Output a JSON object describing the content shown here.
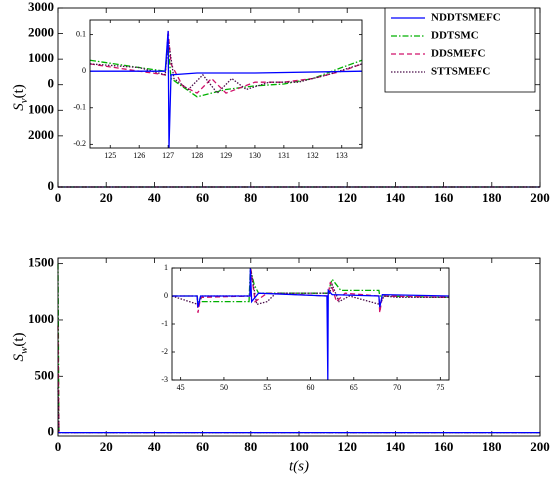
{
  "chart_data": [
    {
      "type": "line",
      "ylabel": {
        "base": "S",
        "sub": "v",
        "rest": "(t)"
      },
      "xlim": [
        0,
        200
      ],
      "xticks": [
        0,
        20,
        40,
        60,
        80,
        100,
        120,
        140,
        160,
        180,
        200
      ],
      "ylim": [
        -4000,
        3000
      ],
      "yticks": [
        3000,
        2000,
        1000,
        0,
        {
          "value": -1000,
          "label": "1000"
        },
        {
          "value": -2000,
          "label": "2000"
        },
        {
          "value": -4000,
          "label": "0"
        }
      ],
      "legend": "upper right",
      "series": [
        {
          "name": "NDDTSMEFC",
          "color": "#0000ff",
          "style": "solid",
          "x": [
            0,
            200
          ],
          "values": [
            -4000,
            -4000
          ]
        },
        {
          "name": "DDTSMC",
          "color": "#00b000",
          "style": "dashdot",
          "x": [
            0,
            200
          ],
          "values": [
            -4000,
            -4000
          ]
        },
        {
          "name": "DDSMEFC",
          "color": "#d0106a",
          "style": "dashed",
          "x": [
            0,
            200
          ],
          "values": [
            -4000,
            -4000
          ]
        },
        {
          "name": "STTSMEFC",
          "color": "#4a0f4a",
          "style": "dotted",
          "x": [
            0,
            200
          ],
          "values": [
            -4000,
            -4000
          ]
        }
      ]
    },
    {
      "type": "line",
      "xlim": [
        124.3,
        133.7
      ],
      "xticks": [
        125,
        126,
        127,
        128,
        129,
        130,
        131,
        132,
        133
      ],
      "ylim": [
        -0.21,
        0.14
      ],
      "yticks": [
        0.1,
        0,
        -0.1,
        -0.2
      ],
      "series": [
        {
          "color": "#00b000",
          "style": "dashdot",
          "x": [
            124.3,
            126,
            126.9,
            127,
            127.1,
            128,
            129,
            130,
            131,
            132,
            133,
            133.7
          ],
          "values": [
            0.03,
            0.01,
            0,
            0.07,
            -0.02,
            -0.07,
            -0.05,
            -0.04,
            -0.035,
            -0.02,
            0.01,
            0.03
          ]
        },
        {
          "color": "#d0106a",
          "style": "dashed",
          "x": [
            124.3,
            126,
            126.9,
            127,
            127.1,
            127.5,
            128,
            128.5,
            129,
            130,
            131,
            132,
            133,
            133.7
          ],
          "values": [
            0.02,
            0,
            -0.01,
            0.11,
            0.02,
            -0.04,
            -0.06,
            -0.02,
            -0.06,
            -0.03,
            -0.03,
            -0.02,
            0,
            0.02
          ]
        },
        {
          "color": "#4a0f4a",
          "style": "dotted",
          "x": [
            124.3,
            126,
            126.9,
            127,
            127.2,
            127.7,
            128.2,
            128.7,
            129.2,
            129.7,
            130.5,
            131.5,
            132.5,
            133.7
          ],
          "values": [
            0.02,
            0.01,
            -0.01,
            0.09,
            -0.02,
            -0.05,
            -0.01,
            -0.06,
            -0.02,
            -0.05,
            -0.03,
            -0.03,
            -0.01,
            0.02
          ]
        },
        {
          "color": "#0000ff",
          "style": "solid",
          "x": [
            124.3,
            126.9,
            127,
            127.03,
            127.1,
            128,
            130,
            133.7
          ],
          "values": [
            0,
            0,
            0.11,
            -0.21,
            -0.01,
            -0.005,
            -0.005,
            0
          ]
        }
      ]
    },
    {
      "type": "line",
      "ylabel": {
        "base": "S",
        "sub": "w",
        "rest": "(t)"
      },
      "xlabel": "t(s)",
      "xlim": [
        0,
        200
      ],
      "xticks": [
        0,
        20,
        40,
        60,
        80,
        100,
        120,
        140,
        160,
        180,
        200
      ],
      "ylim": [
        -30,
        1550
      ],
      "yticks": [
        0,
        500,
        1000,
        1500
      ],
      "series": [
        {
          "color": "#00b000",
          "style": "dashdot",
          "x": [
            0,
            0.4,
            200
          ],
          "values": [
            1500,
            0,
            0
          ]
        },
        {
          "color": "#d0106a",
          "style": "dashed",
          "x": [
            0,
            0.4,
            200
          ],
          "values": [
            950,
            0,
            0
          ]
        },
        {
          "color": "#4a0f4a",
          "style": "dotted",
          "x": [
            0,
            0.4,
            200
          ],
          "values": [
            400,
            0,
            0
          ]
        },
        {
          "color": "#0000ff",
          "style": "solid",
          "x": [
            0,
            200
          ],
          "values": [
            0,
            0
          ]
        }
      ]
    },
    {
      "type": "line",
      "xlim": [
        44,
        76
      ],
      "xticks": [
        45,
        50,
        55,
        60,
        65,
        70,
        75
      ],
      "ylim": [
        -3,
        1
      ],
      "yticks": [
        1,
        0,
        -1,
        -2,
        -3
      ],
      "series": [
        {
          "color": "#00b000",
          "style": "dashdot",
          "x": [
            44,
            46.9,
            47,
            47.5,
            52.9,
            53.05,
            53.5,
            54,
            62,
            62.5,
            63.5,
            67.9,
            68,
            76
          ],
          "values": [
            0,
            0,
            -0.2,
            -0.2,
            -0.2,
            1.0,
            0.4,
            0.1,
            0.1,
            0.6,
            0.2,
            0.2,
            0,
            -0.05
          ]
        },
        {
          "color": "#d0106a",
          "style": "dashed",
          "x": [
            44,
            46.9,
            47,
            47.3,
            53,
            53.1,
            53.6,
            55,
            62,
            62.3,
            63,
            64,
            67.9,
            68,
            68.3,
            76
          ],
          "values": [
            0,
            0,
            -0.6,
            -0.05,
            0,
            1.0,
            -0.2,
            0.1,
            0,
            0.5,
            -0.2,
            0.1,
            0,
            -0.6,
            0,
            -0.05
          ]
        },
        {
          "color": "#4a0f4a",
          "style": "dotted",
          "x": [
            44,
            47,
            47.5,
            53,
            53.1,
            53.8,
            55,
            56,
            62.2,
            62.5,
            63.3,
            64.5,
            68,
            68.5,
            70,
            76
          ],
          "values": [
            0,
            -0.3,
            0,
            0,
            0.9,
            -0.3,
            -0.2,
            0.1,
            0.1,
            0.4,
            -0.2,
            0,
            -0.3,
            0,
            -0.05,
            -0.05
          ]
        },
        {
          "color": "#0000ff",
          "style": "solid",
          "x": [
            44,
            46.9,
            47,
            47.3,
            53,
            53.05,
            53.2,
            54,
            61.9,
            62,
            62.05,
            62.5,
            67.9,
            68,
            68.3,
            76
          ],
          "values": [
            0,
            0,
            -0.4,
            0,
            0,
            1.0,
            -0.2,
            0.1,
            0,
            -3,
            0.2,
            0.05,
            0,
            -0.4,
            0.05,
            0
          ]
        }
      ]
    }
  ]
}
